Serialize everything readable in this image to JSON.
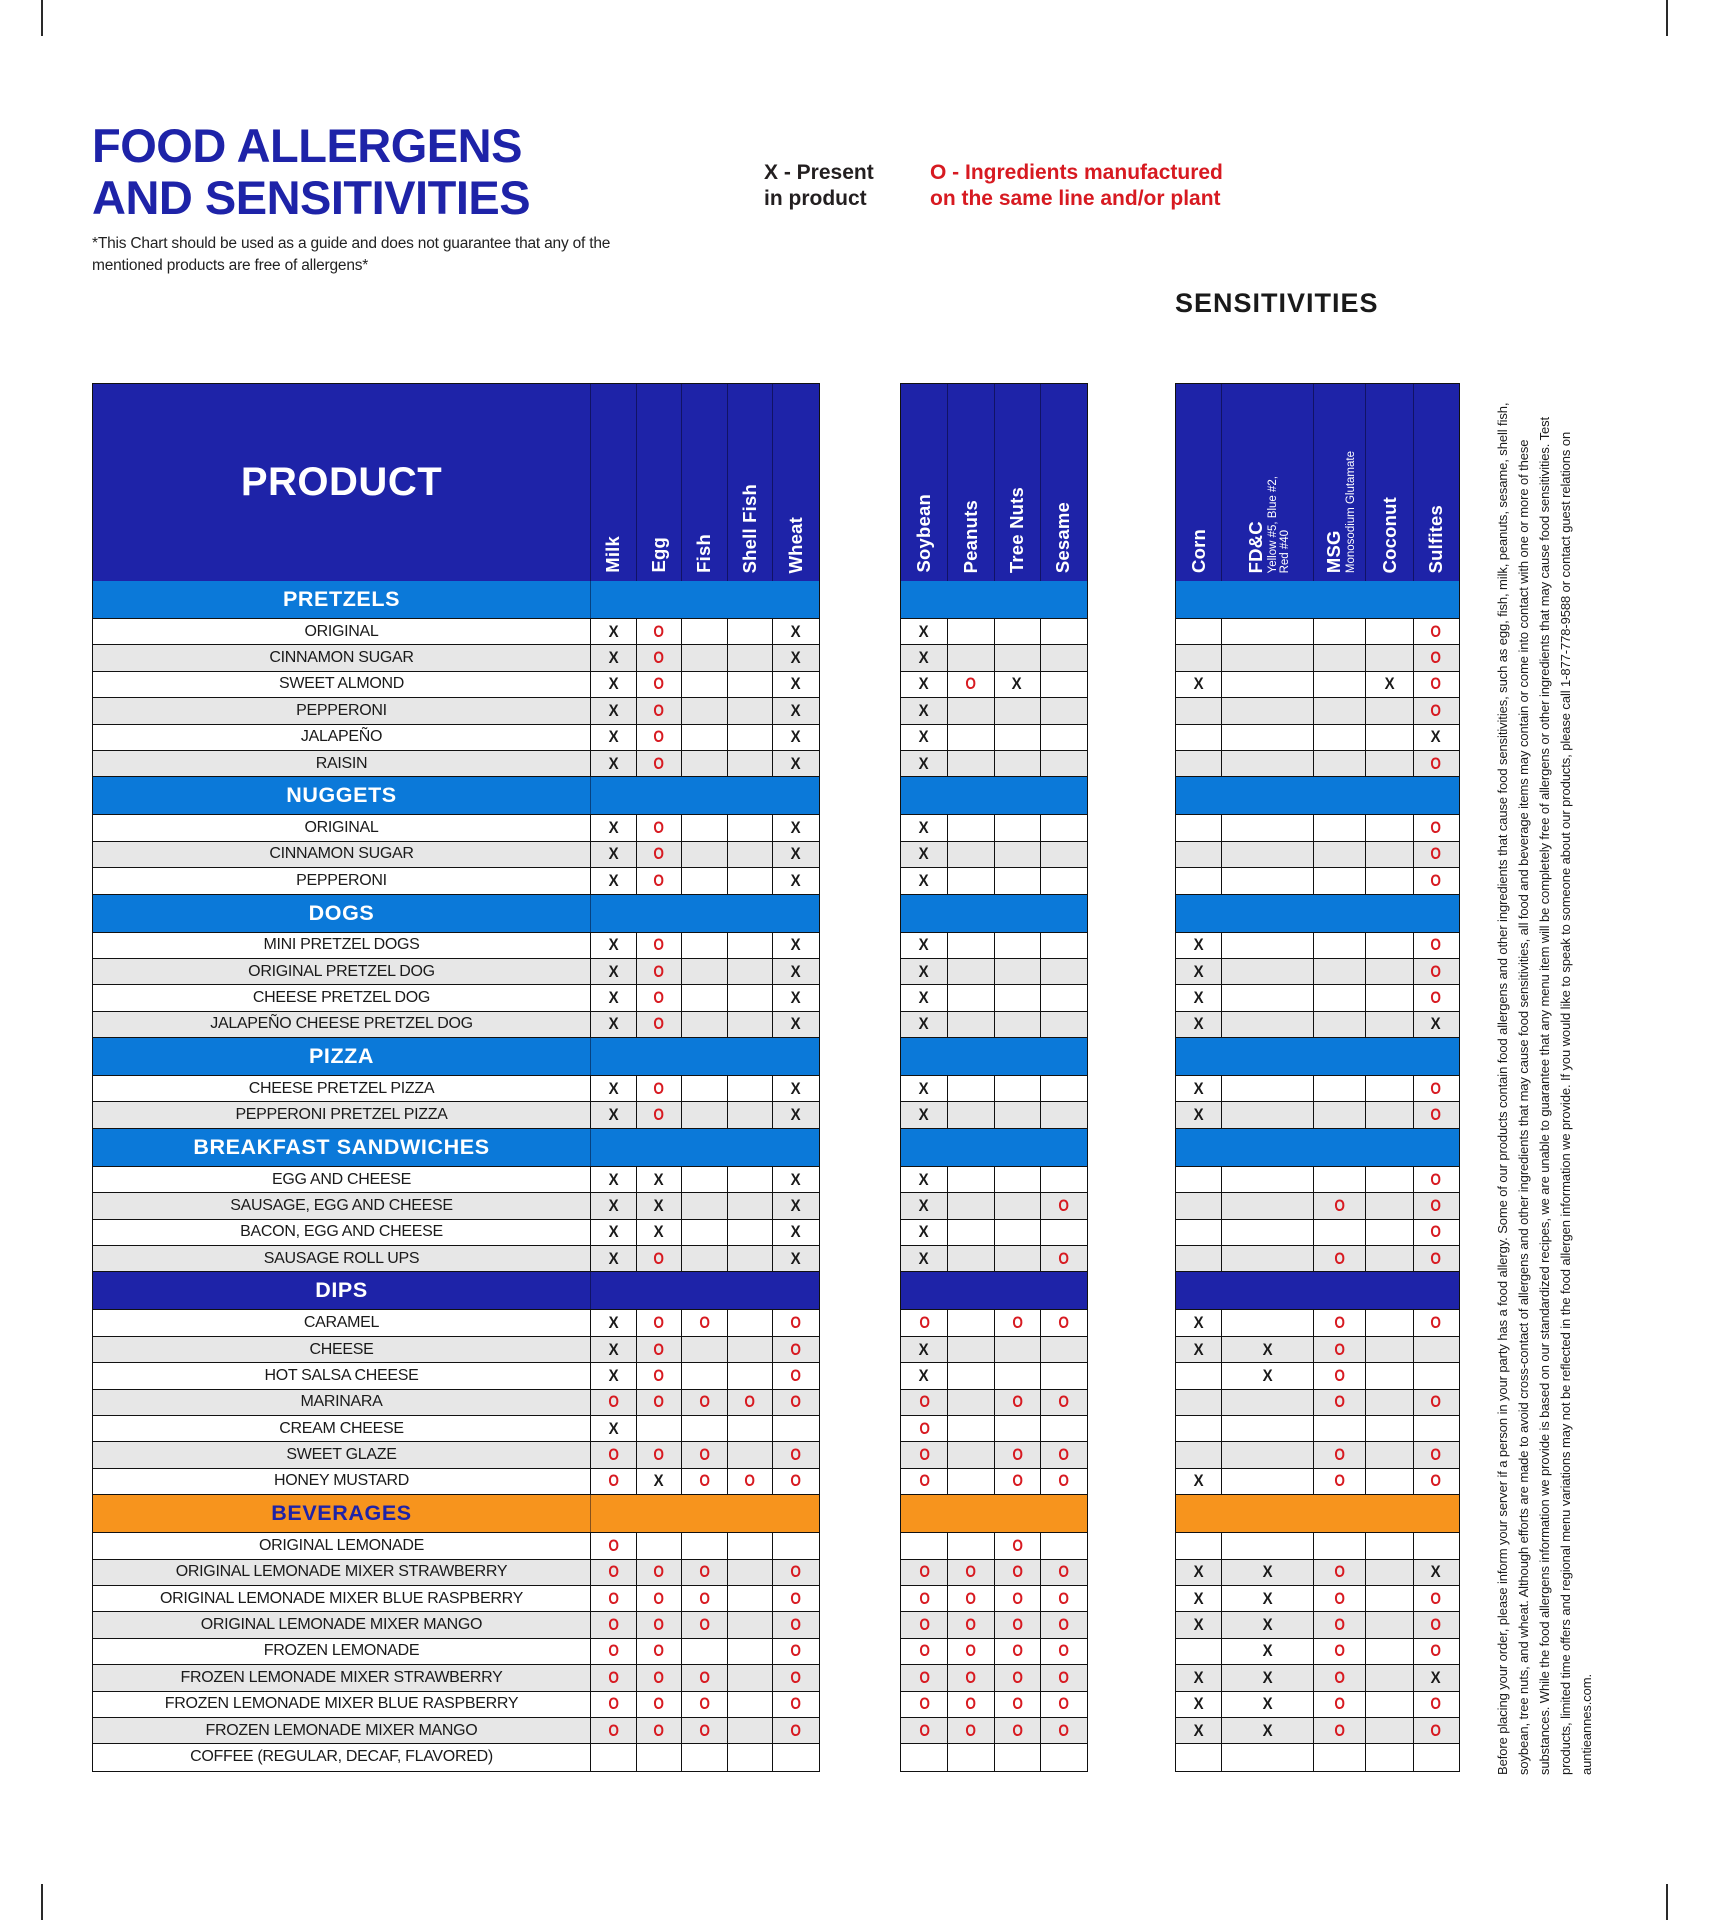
{
  "page": {
    "title_line1": "FOOD ALLERGENS",
    "title_line2": "AND SENSITIVITIES",
    "subtitle": "*This Chart should be used as a guide and does not guarantee that any of the mentioned products are free of allergens*",
    "legend_x_line1": "X - Present",
    "legend_x_line2": "in product",
    "legend_o_line1": "O - Ingredients manufactured",
    "legend_o_line2": "on the same line and/or plant",
    "sensitivities_label": "SENSITIVITIES",
    "product_header": "PRODUCT",
    "footnote_vertical": "Before placing your order, please inform your server if a person in your party has a food allergy. Some of our products contain food allergens and other ingredients that cause food sensitivities, such as egg, fish, milk, peanuts, sesame, shell fish, soybean, tree nuts, and wheat. Although efforts are made to avoid cross-contact of allergens and other ingredients that may cause food sensitivities, all food and beverage items may contain or come into contact with one or more of these substances. While the food allergens information we provide is based on our standardized recipes, we are unable to guarantee that any menu item will be completely free of allergens or other ingredients that may cause food sensitivities. Test products, limited time offers and regional menu variations may not be reflected in the food allergen information we provide. If you would like to speak to someone about our products, please call 1-877-778-9588 or contact guest relations on auntieannes.com."
  },
  "colors": {
    "navy": "#1e23a8",
    "blue": "#0b79d9",
    "orange": "#f7941d",
    "red": "#d71a21",
    "stripe": "#e7e7e7"
  },
  "marks_legend": {
    "x": "X",
    "o": "O"
  },
  "columns": {
    "group1": [
      {
        "label": "Milk"
      },
      {
        "label": "Egg"
      },
      {
        "label": "Fish"
      },
      {
        "label": "Shell Fish"
      },
      {
        "label": "Wheat"
      }
    ],
    "group2": [
      {
        "label": "Soybean"
      },
      {
        "label": "Peanuts"
      },
      {
        "label": "Tree Nuts"
      },
      {
        "label": "Sesame"
      }
    ],
    "group3": [
      {
        "label": "Corn"
      },
      {
        "label": "FD&C",
        "sub": [
          "Yellow #5, Blue #2,",
          "Red #40"
        ]
      },
      {
        "label": "MSG",
        "sub": [
          "Monosodium Glutamate"
        ]
      },
      {
        "label": "Coconut"
      },
      {
        "label": "Sulfites"
      }
    ]
  },
  "sections": [
    {
      "name": "PRETZELS",
      "style": "blue",
      "rows": [
        {
          "product": "ORIGINAL",
          "g1": [
            "X",
            "O",
            "",
            "",
            "X"
          ],
          "g2": [
            "X",
            "",
            "",
            ""
          ],
          "g3": [
            "",
            "",
            "",
            "",
            "O"
          ]
        },
        {
          "product": "CINNAMON SUGAR",
          "g1": [
            "X",
            "O",
            "",
            "",
            "X"
          ],
          "g2": [
            "X",
            "",
            "",
            ""
          ],
          "g3": [
            "",
            "",
            "",
            "",
            "O"
          ]
        },
        {
          "product": "SWEET ALMOND",
          "g1": [
            "X",
            "O",
            "",
            "",
            "X"
          ],
          "g2": [
            "X",
            "O",
            "X",
            ""
          ],
          "g3": [
            "X",
            "",
            "",
            "X",
            "O"
          ]
        },
        {
          "product": "PEPPERONI",
          "g1": [
            "X",
            "O",
            "",
            "",
            "X"
          ],
          "g2": [
            "X",
            "",
            "",
            ""
          ],
          "g3": [
            "",
            "",
            "",
            "",
            "O"
          ]
        },
        {
          "product": "JALAPEÑO",
          "g1": [
            "X",
            "O",
            "",
            "",
            "X"
          ],
          "g2": [
            "X",
            "",
            "",
            ""
          ],
          "g3": [
            "",
            "",
            "",
            "",
            "X"
          ]
        },
        {
          "product": "RAISIN",
          "g1": [
            "X",
            "O",
            "",
            "",
            "X"
          ],
          "g2": [
            "X",
            "",
            "",
            ""
          ],
          "g3": [
            "",
            "",
            "",
            "",
            "O"
          ]
        }
      ]
    },
    {
      "name": "NUGGETS",
      "style": "blue",
      "rows": [
        {
          "product": "ORIGINAL",
          "g1": [
            "X",
            "O",
            "",
            "",
            "X"
          ],
          "g2": [
            "X",
            "",
            "",
            ""
          ],
          "g3": [
            "",
            "",
            "",
            "",
            "O"
          ]
        },
        {
          "product": "CINNAMON SUGAR",
          "g1": [
            "X",
            "O",
            "",
            "",
            "X"
          ],
          "g2": [
            "X",
            "",
            "",
            ""
          ],
          "g3": [
            "",
            "",
            "",
            "",
            "O"
          ]
        },
        {
          "product": "PEPPERONI",
          "g1": [
            "X",
            "O",
            "",
            "",
            "X"
          ],
          "g2": [
            "X",
            "",
            "",
            ""
          ],
          "g3": [
            "",
            "",
            "",
            "",
            "O"
          ]
        }
      ]
    },
    {
      "name": "DOGS",
      "style": "blue",
      "rows": [
        {
          "product": "MINI PRETZEL DOGS",
          "g1": [
            "X",
            "O",
            "",
            "",
            "X"
          ],
          "g2": [
            "X",
            "",
            "",
            ""
          ],
          "g3": [
            "X",
            "",
            "",
            "",
            "O"
          ]
        },
        {
          "product": "ORIGINAL PRETZEL DOG",
          "g1": [
            "X",
            "O",
            "",
            "",
            "X"
          ],
          "g2": [
            "X",
            "",
            "",
            ""
          ],
          "g3": [
            "X",
            "",
            "",
            "",
            "O"
          ]
        },
        {
          "product": "CHEESE PRETZEL DOG",
          "g1": [
            "X",
            "O",
            "",
            "",
            "X"
          ],
          "g2": [
            "X",
            "",
            "",
            ""
          ],
          "g3": [
            "X",
            "",
            "",
            "",
            "O"
          ]
        },
        {
          "product": "JALAPEÑO CHEESE PRETZEL DOG",
          "g1": [
            "X",
            "O",
            "",
            "",
            "X"
          ],
          "g2": [
            "X",
            "",
            "",
            ""
          ],
          "g3": [
            "X",
            "",
            "",
            "",
            "X"
          ]
        }
      ]
    },
    {
      "name": "PIZZA",
      "style": "blue",
      "rows": [
        {
          "product": "CHEESE PRETZEL PIZZA",
          "g1": [
            "X",
            "O",
            "",
            "",
            "X"
          ],
          "g2": [
            "X",
            "",
            "",
            ""
          ],
          "g3": [
            "X",
            "",
            "",
            "",
            "O"
          ]
        },
        {
          "product": "PEPPERONI PRETZEL PIZZA",
          "g1": [
            "X",
            "O",
            "",
            "",
            "X"
          ],
          "g2": [
            "X",
            "",
            "",
            ""
          ],
          "g3": [
            "X",
            "",
            "",
            "",
            "O"
          ]
        }
      ]
    },
    {
      "name": "BREAKFAST SANDWICHES",
      "style": "blue",
      "rows": [
        {
          "product": "EGG AND CHEESE",
          "g1": [
            "X",
            "X",
            "",
            "",
            "X"
          ],
          "g2": [
            "X",
            "",
            "",
            ""
          ],
          "g3": [
            "",
            "",
            "",
            "",
            "O"
          ]
        },
        {
          "product": "SAUSAGE, EGG AND CHEESE",
          "g1": [
            "X",
            "X",
            "",
            "",
            "X"
          ],
          "g2": [
            "X",
            "",
            "",
            "O"
          ],
          "g3": [
            "",
            "",
            "O",
            "",
            "O"
          ]
        },
        {
          "product": "BACON, EGG AND CHEESE",
          "g1": [
            "X",
            "X",
            "",
            "",
            "X"
          ],
          "g2": [
            "X",
            "",
            "",
            ""
          ],
          "g3": [
            "",
            "",
            "",
            "",
            "O"
          ]
        },
        {
          "product": "SAUSAGE ROLL UPS",
          "g1": [
            "X",
            "O",
            "",
            "",
            "X"
          ],
          "g2": [
            "X",
            "",
            "",
            "O"
          ],
          "g3": [
            "",
            "",
            "O",
            "",
            "O"
          ]
        }
      ]
    },
    {
      "name": "DIPS",
      "style": "navy",
      "rows": [
        {
          "product": "CARAMEL",
          "g1": [
            "X",
            "O",
            "O",
            "",
            "O"
          ],
          "g2": [
            "O",
            "",
            "O",
            "O"
          ],
          "g3": [
            "X",
            "",
            "O",
            "",
            "O"
          ]
        },
        {
          "product": "CHEESE",
          "g1": [
            "X",
            "O",
            "",
            "",
            "O"
          ],
          "g2": [
            "X",
            "",
            "",
            ""
          ],
          "g3": [
            "X",
            "X",
            "O",
            "",
            ""
          ]
        },
        {
          "product": "HOT SALSA CHEESE",
          "g1": [
            "X",
            "O",
            "",
            "",
            "O"
          ],
          "g2": [
            "X",
            "",
            "",
            ""
          ],
          "g3": [
            "",
            "X",
            "O",
            "",
            ""
          ]
        },
        {
          "product": "MARINARA",
          "g1": [
            "O",
            "O",
            "O",
            "O",
            "O"
          ],
          "g2": [
            "O",
            "",
            "O",
            "O"
          ],
          "g3": [
            "",
            "",
            "O",
            "",
            "O"
          ]
        },
        {
          "product": "CREAM CHEESE",
          "g1": [
            "X",
            "",
            "",
            "",
            ""
          ],
          "g2": [
            "O",
            "",
            "",
            ""
          ],
          "g3": [
            "",
            "",
            "",
            "",
            ""
          ]
        },
        {
          "product": "SWEET GLAZE",
          "g1": [
            "O",
            "O",
            "O",
            "",
            "O"
          ],
          "g2": [
            "O",
            "",
            "O",
            "O"
          ],
          "g3": [
            "",
            "",
            "O",
            "",
            "O"
          ]
        },
        {
          "product": "HONEY MUSTARD",
          "g1": [
            "O",
            "X",
            "O",
            "O",
            "O"
          ],
          "g2": [
            "O",
            "",
            "O",
            "O"
          ],
          "g3": [
            "X",
            "",
            "O",
            "",
            "O"
          ]
        }
      ]
    },
    {
      "name": "BEVERAGES",
      "style": "orange",
      "rows": [
        {
          "product": "ORIGINAL LEMONADE",
          "g1": [
            "O",
            "",
            "",
            "",
            ""
          ],
          "g2": [
            "",
            "",
            "O",
            ""
          ],
          "g3": [
            "",
            "",
            "",
            "",
            ""
          ]
        },
        {
          "product": "ORIGINAL LEMONADE MIXER STRAWBERRY",
          "g1": [
            "O",
            "O",
            "O",
            "",
            "O"
          ],
          "g2": [
            "O",
            "O",
            "O",
            "O"
          ],
          "g3": [
            "X",
            "X",
            "O",
            "",
            "X"
          ]
        },
        {
          "product": "ORIGINAL LEMONADE MIXER BLUE RASPBERRY",
          "g1": [
            "O",
            "O",
            "O",
            "",
            "O"
          ],
          "g2": [
            "O",
            "O",
            "O",
            "O"
          ],
          "g3": [
            "X",
            "X",
            "O",
            "",
            "O"
          ]
        },
        {
          "product": "ORIGINAL LEMONADE MIXER MANGO",
          "g1": [
            "O",
            "O",
            "O",
            "",
            "O"
          ],
          "g2": [
            "O",
            "O",
            "O",
            "O"
          ],
          "g3": [
            "X",
            "X",
            "O",
            "",
            "O"
          ]
        },
        {
          "product": "FROZEN LEMONADE",
          "g1": [
            "O",
            "O",
            "",
            "",
            "O"
          ],
          "g2": [
            "O",
            "O",
            "O",
            "O"
          ],
          "g3": [
            "",
            "X",
            "O",
            "",
            "O"
          ]
        },
        {
          "product": "FROZEN LEMONADE MIXER STRAWBERRY",
          "g1": [
            "O",
            "O",
            "O",
            "",
            "O"
          ],
          "g2": [
            "O",
            "O",
            "O",
            "O"
          ],
          "g3": [
            "X",
            "X",
            "O",
            "",
            "X"
          ]
        },
        {
          "product": "FROZEN LEMONADE MIXER BLUE RASPBERRY",
          "g1": [
            "O",
            "O",
            "O",
            "",
            "O"
          ],
          "g2": [
            "O",
            "O",
            "O",
            "O"
          ],
          "g3": [
            "X",
            "X",
            "O",
            "",
            "O"
          ]
        },
        {
          "product": "FROZEN LEMONADE MIXER MANGO",
          "g1": [
            "O",
            "O",
            "O",
            "",
            "O"
          ],
          "g2": [
            "O",
            "O",
            "O",
            "O"
          ],
          "g3": [
            "X",
            "X",
            "O",
            "",
            "O"
          ]
        },
        {
          "product": "COFFEE (REGULAR, DECAF, FLAVORED)",
          "g1": [
            "",
            "",
            "",
            "",
            ""
          ],
          "g2": [
            "",
            "",
            "",
            ""
          ],
          "g3": [
            "",
            "",
            "",
            "",
            ""
          ]
        }
      ]
    }
  ]
}
